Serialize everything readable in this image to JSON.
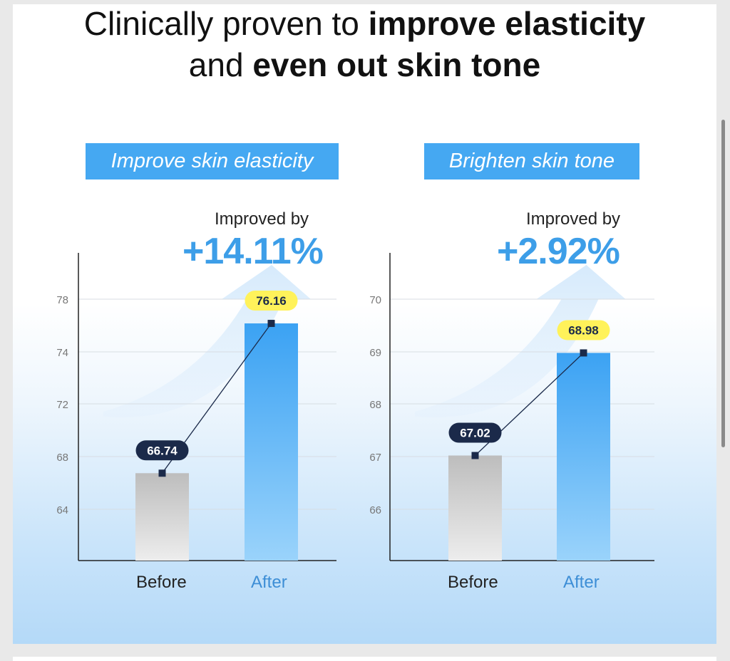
{
  "headline": {
    "pre": "Clinically proven to ",
    "bold1": "improve elasticity",
    "mid": "and ",
    "bold2": "even out skin tone"
  },
  "colors": {
    "accent": "#45a8f2",
    "percent": "#3d9ee8",
    "after_label": "#3d8ed6",
    "before_bar_top": "#bdbdbd",
    "after_bar_top": "#3ba2f3",
    "yellow_tag": "#fff25a",
    "navy_tag": "#1b2a4a"
  },
  "chart_data": [
    {
      "type": "bar",
      "title": "Improve skin elasticity",
      "categories": [
        "Before",
        "After"
      ],
      "values": [
        66.74,
        76.16
      ],
      "ticks": [
        "64",
        "68",
        "72",
        "74",
        "78"
      ],
      "improvement_label": "Improved by",
      "improvement": "+14.11%",
      "grid": true
    },
    {
      "type": "bar",
      "title": "Brighten skin tone",
      "categories": [
        "Before",
        "After"
      ],
      "values": [
        67.02,
        68.98
      ],
      "ticks": [
        "66",
        "67",
        "68",
        "69",
        "70"
      ],
      "improvement_label": "Improved by",
      "improvement": "+2.92%",
      "grid": true
    }
  ]
}
